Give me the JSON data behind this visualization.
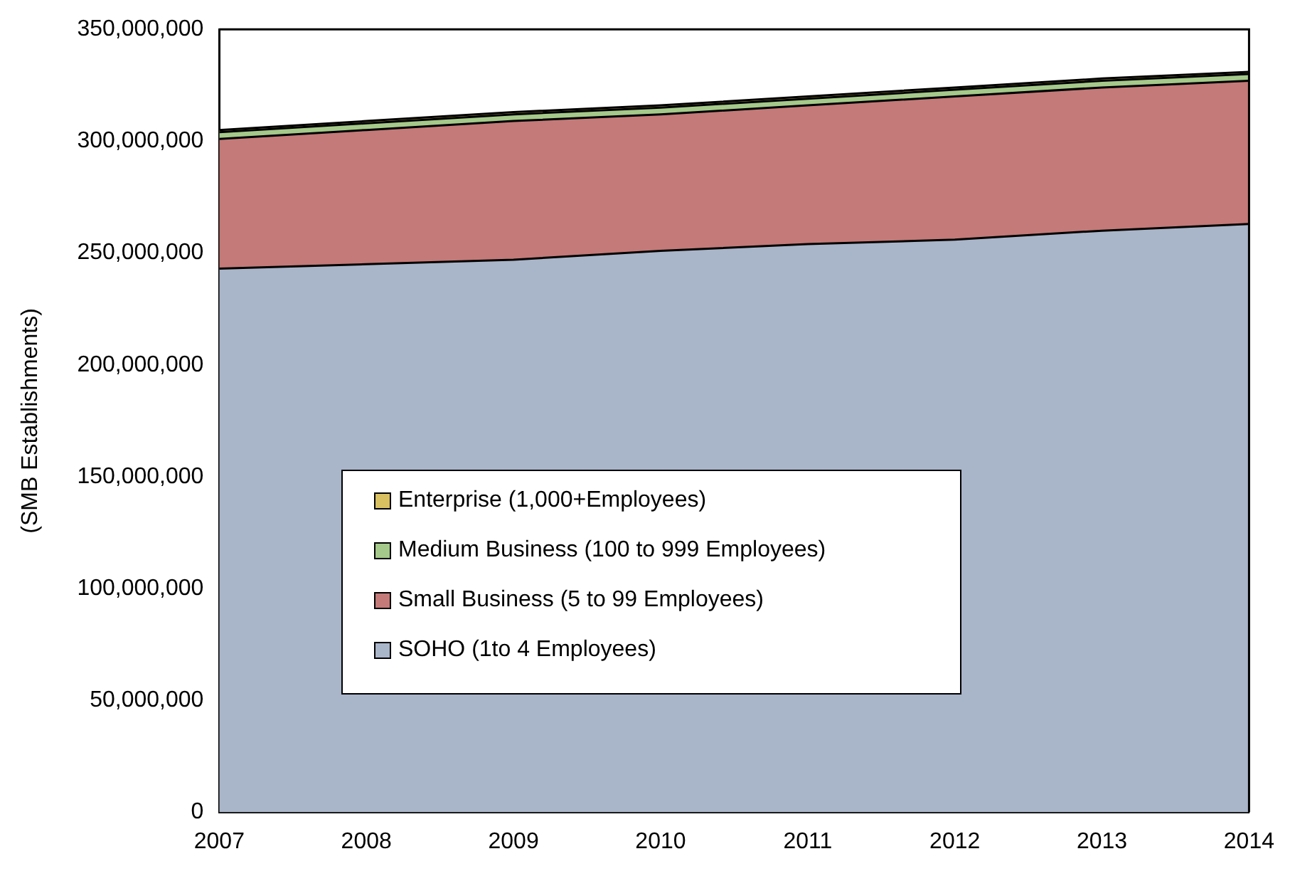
{
  "chart_data": {
    "type": "area",
    "stacked": true,
    "ylabel": "(SMB Establishments)",
    "x": [
      2007,
      2008,
      2009,
      2010,
      2011,
      2012,
      2013,
      2014
    ],
    "xlim": [
      2007,
      2014
    ],
    "xticks": [
      2007,
      2008,
      2009,
      2010,
      2011,
      2012,
      2013,
      2014
    ],
    "ylim": [
      0,
      350000000
    ],
    "yticks": [
      0,
      {
        "value": 50000000,
        "label": "50,000,000"
      },
      {
        "value": 100000000,
        "label": "100,000,000"
      },
      {
        "value": 150000000,
        "label": "150,000,000"
      },
      {
        "value": 200000000,
        "label": "200,000,000"
      },
      {
        "value": 250000000,
        "label": "250,000,000"
      },
      {
        "value": 300000000,
        "label": "300,000,000"
      },
      {
        "value": 350000000,
        "label": "350,000,000"
      }
    ],
    "grid": false,
    "legend": "bottom left",
    "series": [
      {
        "name": "SOHO (1to 4 Employees)",
        "color": "#a9b5c9",
        "values": [
          243000000,
          245000000,
          247000000,
          251000000,
          254000000,
          256000000,
          260000000,
          263000000
        ]
      },
      {
        "name": "Small Business (5 to 99 Employees)",
        "color": "#c47a78",
        "values": [
          58000000,
          60000000,
          62000000,
          61000000,
          62000000,
          64000000,
          64000000,
          64000000
        ]
      },
      {
        "name": "Medium Business (100 to 999 Employees)",
        "color": "#a5c98a",
        "values": [
          3000000,
          3000000,
          3000000,
          3000000,
          3000000,
          3000000,
          3000000,
          3000000
        ]
      },
      {
        "name": "Enterprise (1,000+Employees)",
        "color": "#d9c060",
        "values": [
          1000000,
          1000000,
          1000000,
          1000000,
          1000000,
          1000000,
          1000000,
          1000000
        ]
      }
    ]
  }
}
